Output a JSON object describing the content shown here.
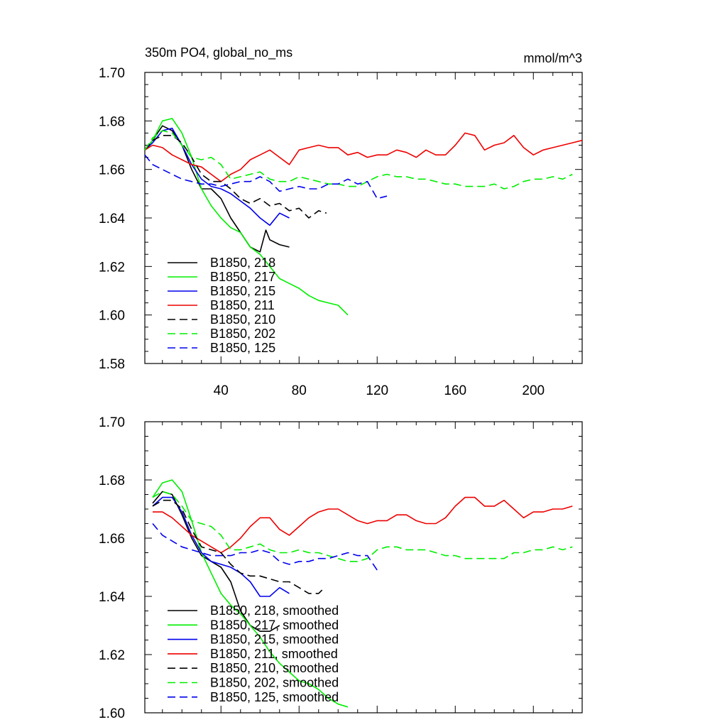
{
  "chart_data": [
    {
      "type": "line",
      "title": "350m PO4, global_no_ms",
      "units_label": "mmol/m^3",
      "xlabel": "",
      "ylabel": "",
      "xlim": [
        1,
        225
      ],
      "ylim": [
        1.58,
        1.7
      ],
      "xticks": [
        40,
        80,
        120,
        160,
        200
      ],
      "xtick_labels": [
        "40",
        "80",
        "120",
        "160",
        "200"
      ],
      "yticks": [
        1.58,
        1.6,
        1.62,
        1.64,
        1.66,
        1.68,
        1.7
      ],
      "ytick_labels": [
        "1.58",
        "1.60",
        "1.62",
        "1.64",
        "1.66",
        "1.68",
        "1.70"
      ],
      "legend_position": "lower-left",
      "series": [
        {
          "name": "B1850, 218",
          "color": "#000000",
          "dash": "solid",
          "x": [
            1,
            5,
            10,
            15,
            20,
            25,
            30,
            35,
            40,
            45,
            50,
            55,
            60,
            63,
            65,
            70,
            75
          ],
          "values": [
            1.668,
            1.672,
            1.678,
            1.676,
            1.67,
            1.66,
            1.652,
            1.652,
            1.648,
            1.64,
            1.634,
            1.628,
            1.626,
            1.635,
            1.631,
            1.629,
            1.628
          ]
        },
        {
          "name": "B1850, 217",
          "color": "#00ee00",
          "dash": "solid",
          "x": [
            1,
            5,
            10,
            15,
            20,
            25,
            30,
            35,
            40,
            45,
            50,
            55,
            60,
            65,
            70,
            75,
            80,
            85,
            90,
            95,
            100,
            105
          ],
          "values": [
            1.668,
            1.672,
            1.68,
            1.681,
            1.675,
            1.665,
            1.652,
            1.645,
            1.64,
            1.636,
            1.634,
            1.628,
            1.625,
            1.62,
            1.615,
            1.613,
            1.611,
            1.608,
            1.606,
            1.605,
            1.604,
            1.6
          ]
        },
        {
          "name": "B1850, 215",
          "color": "#0000ee",
          "dash": "solid",
          "x": [
            1,
            5,
            10,
            15,
            20,
            25,
            30,
            35,
            40,
            45,
            50,
            55,
            60,
            65,
            70,
            75
          ],
          "values": [
            1.668,
            1.671,
            1.676,
            1.677,
            1.67,
            1.662,
            1.656,
            1.653,
            1.652,
            1.65,
            1.647,
            1.644,
            1.64,
            1.637,
            1.642,
            1.64
          ]
        },
        {
          "name": "B1850, 211",
          "color": "#ee0000",
          "dash": "solid",
          "x": [
            1,
            5,
            10,
            15,
            20,
            25,
            30,
            35,
            40,
            45,
            50,
            55,
            60,
            65,
            70,
            75,
            80,
            85,
            90,
            95,
            100,
            105,
            110,
            115,
            120,
            125,
            130,
            135,
            140,
            145,
            150,
            155,
            160,
            165,
            170,
            175,
            180,
            185,
            190,
            195,
            200,
            205,
            210,
            215,
            220,
            225
          ],
          "values": [
            1.668,
            1.67,
            1.669,
            1.666,
            1.664,
            1.662,
            1.661,
            1.658,
            1.655,
            1.658,
            1.66,
            1.664,
            1.666,
            1.668,
            1.665,
            1.662,
            1.668,
            1.669,
            1.67,
            1.669,
            1.669,
            1.666,
            1.667,
            1.665,
            1.666,
            1.666,
            1.668,
            1.667,
            1.665,
            1.668,
            1.666,
            1.666,
            1.67,
            1.675,
            1.674,
            1.668,
            1.67,
            1.671,
            1.674,
            1.669,
            1.666,
            1.668,
            1.669,
            1.67,
            1.671,
            1.672
          ]
        },
        {
          "name": "B1850, 210",
          "color": "#000000",
          "dash": "dash",
          "x": [
            1,
            5,
            10,
            15,
            20,
            25,
            30,
            35,
            40,
            45,
            50,
            55,
            60,
            65,
            70,
            75,
            80,
            85,
            90,
            94
          ],
          "values": [
            1.668,
            1.672,
            1.674,
            1.674,
            1.671,
            1.665,
            1.658,
            1.655,
            1.655,
            1.652,
            1.648,
            1.646,
            1.648,
            1.645,
            1.646,
            1.643,
            1.644,
            1.64,
            1.643,
            1.642
          ]
        },
        {
          "name": "B1850, 202",
          "color": "#00ee00",
          "dash": "dash",
          "x": [
            1,
            5,
            10,
            15,
            20,
            25,
            30,
            35,
            40,
            45,
            50,
            55,
            60,
            65,
            70,
            75,
            80,
            85,
            90,
            95,
            100,
            105,
            110,
            115,
            120,
            125,
            130,
            135,
            140,
            145,
            150,
            155,
            160,
            165,
            170,
            175,
            180,
            185,
            190,
            195,
            200,
            205,
            210,
            215,
            220
          ],
          "values": [
            1.668,
            1.673,
            1.676,
            1.675,
            1.67,
            1.665,
            1.664,
            1.665,
            1.662,
            1.656,
            1.657,
            1.658,
            1.659,
            1.656,
            1.655,
            1.655,
            1.657,
            1.656,
            1.655,
            1.654,
            1.654,
            1.653,
            1.653,
            1.655,
            1.657,
            1.658,
            1.657,
            1.657,
            1.656,
            1.656,
            1.655,
            1.654,
            1.654,
            1.653,
            1.653,
            1.653,
            1.654,
            1.652,
            1.653,
            1.655,
            1.656,
            1.656,
            1.657,
            1.656,
            1.658
          ]
        },
        {
          "name": "B1850, 125",
          "color": "#0000ee",
          "dash": "dash",
          "x": [
            1,
            5,
            10,
            15,
            20,
            25,
            30,
            35,
            40,
            45,
            50,
            55,
            60,
            65,
            70,
            75,
            80,
            85,
            90,
            95,
            100,
            105,
            110,
            115,
            120,
            125
          ],
          "values": [
            1.666,
            1.662,
            1.66,
            1.658,
            1.656,
            1.655,
            1.654,
            1.654,
            1.653,
            1.654,
            1.655,
            1.655,
            1.657,
            1.655,
            1.651,
            1.652,
            1.653,
            1.652,
            1.652,
            1.654,
            1.654,
            1.656,
            1.654,
            1.655,
            1.648,
            1.649
          ]
        }
      ]
    },
    {
      "type": "line",
      "title": "",
      "xlabel": "",
      "ylabel": "",
      "xlim": [
        1,
        225
      ],
      "ylim": [
        1.6,
        1.7
      ],
      "xticks": [
        40,
        80,
        120,
        160,
        200
      ],
      "yticks": [
        1.6,
        1.62,
        1.64,
        1.66,
        1.68,
        1.7
      ],
      "ytick_labels": [
        "1.60",
        "1.62",
        "1.64",
        "1.66",
        "1.68",
        "1.70"
      ],
      "legend_position": "lower-left",
      "series": [
        {
          "name": "B1850, 218, smoothed",
          "color": "#000000",
          "dash": "solid",
          "x": [
            5,
            10,
            15,
            20,
            25,
            30,
            35,
            40,
            45,
            50,
            55,
            60,
            65,
            70
          ],
          "values": [
            1.672,
            1.676,
            1.675,
            1.668,
            1.66,
            1.654,
            1.652,
            1.65,
            1.645,
            1.635,
            1.63,
            1.628,
            1.628,
            1.63
          ]
        },
        {
          "name": "B1850, 217, smoothed",
          "color": "#00ee00",
          "dash": "solid",
          "x": [
            5,
            10,
            15,
            20,
            25,
            30,
            35,
            40,
            45,
            50,
            55,
            60,
            65,
            70,
            75,
            80,
            85,
            90,
            95,
            100,
            105
          ],
          "values": [
            1.674,
            1.679,
            1.68,
            1.676,
            1.666,
            1.655,
            1.648,
            1.641,
            1.637,
            1.634,
            1.63,
            1.626,
            1.621,
            1.617,
            1.614,
            1.611,
            1.61,
            1.608,
            1.605,
            1.603,
            1.602
          ]
        },
        {
          "name": "B1850, 215, smoothed",
          "color": "#0000ee",
          "dash": "solid",
          "x": [
            5,
            10,
            15,
            20,
            25,
            30,
            35,
            40,
            45,
            50,
            55,
            60,
            65,
            70,
            75
          ],
          "values": [
            1.671,
            1.674,
            1.674,
            1.669,
            1.661,
            1.655,
            1.652,
            1.651,
            1.65,
            1.648,
            1.645,
            1.64,
            1.64,
            1.643,
            1.641
          ]
        },
        {
          "name": "B1850, 211, smoothed",
          "color": "#ee0000",
          "dash": "solid",
          "x": [
            5,
            10,
            15,
            20,
            25,
            30,
            35,
            40,
            45,
            50,
            55,
            60,
            65,
            70,
            75,
            80,
            85,
            90,
            95,
            100,
            105,
            110,
            115,
            120,
            125,
            130,
            135,
            140,
            145,
            150,
            155,
            160,
            165,
            170,
            175,
            180,
            185,
            190,
            195,
            200,
            205,
            210,
            215,
            220
          ],
          "values": [
            1.669,
            1.669,
            1.667,
            1.664,
            1.661,
            1.659,
            1.657,
            1.655,
            1.657,
            1.66,
            1.664,
            1.667,
            1.667,
            1.663,
            1.661,
            1.664,
            1.667,
            1.669,
            1.67,
            1.67,
            1.668,
            1.666,
            1.665,
            1.666,
            1.666,
            1.668,
            1.668,
            1.666,
            1.665,
            1.665,
            1.667,
            1.671,
            1.674,
            1.674,
            1.671,
            1.671,
            1.673,
            1.67,
            1.667,
            1.669,
            1.669,
            1.67,
            1.67,
            1.671
          ]
        },
        {
          "name": "B1850, 210, smoothed",
          "color": "#000000",
          "dash": "dash",
          "x": [
            5,
            10,
            15,
            20,
            25,
            30,
            35,
            40,
            45,
            50,
            55,
            60,
            65,
            70,
            75,
            80,
            85,
            90,
            93
          ],
          "values": [
            1.671,
            1.673,
            1.673,
            1.67,
            1.663,
            1.657,
            1.656,
            1.655,
            1.651,
            1.648,
            1.647,
            1.647,
            1.646,
            1.645,
            1.645,
            1.643,
            1.641,
            1.641,
            1.643
          ]
        },
        {
          "name": "B1850, 202, smoothed",
          "color": "#00ee00",
          "dash": "dash",
          "x": [
            5,
            10,
            15,
            20,
            25,
            30,
            35,
            40,
            45,
            50,
            55,
            60,
            65,
            70,
            75,
            80,
            85,
            90,
            95,
            100,
            105,
            110,
            115,
            120,
            125,
            130,
            135,
            140,
            145,
            150,
            155,
            160,
            165,
            170,
            175,
            180,
            185,
            190,
            195,
            200,
            205,
            210,
            215,
            220
          ],
          "values": [
            1.674,
            1.676,
            1.675,
            1.671,
            1.666,
            1.665,
            1.664,
            1.661,
            1.656,
            1.656,
            1.657,
            1.658,
            1.656,
            1.655,
            1.655,
            1.656,
            1.655,
            1.655,
            1.654,
            1.653,
            1.652,
            1.652,
            1.653,
            1.656,
            1.657,
            1.657,
            1.656,
            1.656,
            1.656,
            1.655,
            1.654,
            1.654,
            1.653,
            1.653,
            1.653,
            1.653,
            1.653,
            1.655,
            1.655,
            1.656,
            1.656,
            1.657,
            1.656,
            1.657
          ]
        },
        {
          "name": "B1850, 125, smoothed",
          "color": "#0000ee",
          "dash": "dash",
          "x": [
            5,
            10,
            15,
            20,
            25,
            30,
            35,
            40,
            45,
            50,
            55,
            60,
            65,
            70,
            75,
            80,
            85,
            90,
            95,
            100,
            105,
            110,
            115,
            120
          ],
          "values": [
            1.665,
            1.661,
            1.659,
            1.657,
            1.656,
            1.655,
            1.654,
            1.654,
            1.654,
            1.655,
            1.655,
            1.656,
            1.655,
            1.652,
            1.651,
            1.652,
            1.652,
            1.653,
            1.653,
            1.654,
            1.655,
            1.654,
            1.654,
            1.649
          ]
        }
      ]
    }
  ]
}
